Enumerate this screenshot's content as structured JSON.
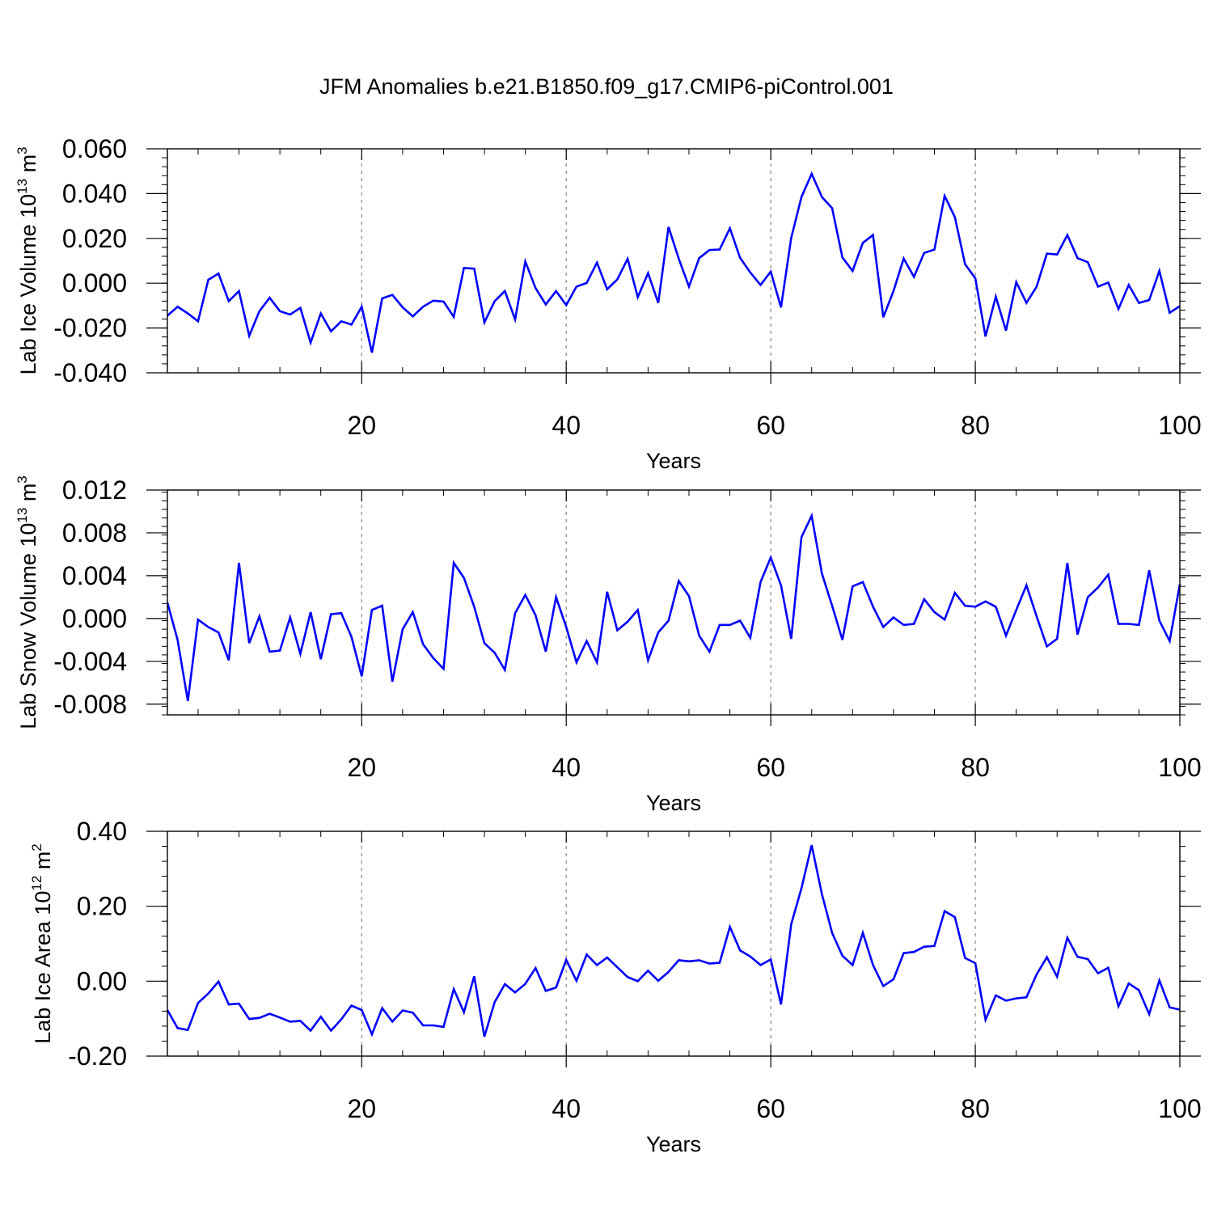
{
  "title": "JFM Anomalies b.e21.B1850.f09_g17.CMIP6-piControl.001",
  "colors": {
    "line": "#0000ff",
    "axis": "#000000",
    "grid": "#888888"
  },
  "chart_data": [
    {
      "type": "line",
      "ylabel": "Lab Ice Volume 10",
      "ylabel_exp": "13",
      "ylabel_unit": " m",
      "ylabel_unit_exp": "3",
      "xlabel": "Years",
      "xlim": [
        1,
        100
      ],
      "ylim": [
        -0.04,
        0.06
      ],
      "x_ticks": [
        20,
        40,
        60,
        80,
        100
      ],
      "x_tick_labels": [
        "20",
        "40",
        "60",
        "80",
        "100"
      ],
      "y_ticks": [
        -0.04,
        -0.02,
        0.0,
        0.02,
        0.04,
        0.06
      ],
      "y_tick_labels": [
        "-0.040",
        "-0.020",
        "0.000",
        "0.020",
        "0.040",
        "0.060"
      ],
      "series": [
        {
          "name": "Lab Ice Volume",
          "values": [
            -0.0145,
            -0.0105,
            -0.0135,
            -0.017,
            0.0015,
            0.0043,
            -0.008,
            -0.0035,
            -0.0235,
            -0.0125,
            -0.0065,
            -0.0125,
            -0.014,
            -0.011,
            -0.0265,
            -0.0135,
            -0.0215,
            -0.017,
            -0.0185,
            -0.0105,
            -0.031,
            -0.0068,
            -0.0052,
            -0.0108,
            -0.0148,
            -0.0105,
            -0.0078,
            -0.0082,
            -0.015,
            0.0068,
            0.0065,
            -0.0175,
            -0.008,
            -0.0035,
            -0.0162,
            0.0097,
            -0.0022,
            -0.0095,
            -0.0035,
            -0.0098,
            -0.0015,
            0.0001,
            0.0092,
            -0.0027,
            0.0017,
            0.0109,
            -0.0062,
            0.0045,
            -0.0088,
            0.0251,
            0.011,
            -0.0015,
            0.0112,
            0.0148,
            0.015,
            0.0245,
            0.0113,
            0.0048,
            -0.0008,
            0.0052,
            -0.0108,
            0.0202,
            0.0385,
            0.0488,
            0.0385,
            0.0335,
            0.0115,
            0.0055,
            0.018,
            0.0215,
            -0.0152,
            -0.0035,
            0.011,
            0.0028,
            0.0135,
            0.015,
            0.039,
            0.0295,
            0.0085,
            0.0022,
            -0.0238,
            -0.006,
            -0.0212,
            0.0005,
            -0.0088,
            -0.0015,
            0.0132,
            0.0128,
            0.0215,
            0.0112,
            0.0094,
            -0.0015,
            0.0003,
            -0.0115,
            -0.0008,
            -0.0088,
            -0.0075,
            0.0055,
            -0.0132,
            -0.0102
          ]
        }
      ]
    },
    {
      "type": "line",
      "ylabel": "Lab Snow Volume 10",
      "ylabel_exp": "13",
      "ylabel_unit": " m",
      "ylabel_unit_exp": "3",
      "xlabel": "Years",
      "xlim": [
        1,
        100
      ],
      "ylim": [
        -0.009,
        0.012
      ],
      "x_ticks": [
        20,
        40,
        60,
        80,
        100
      ],
      "x_tick_labels": [
        "20",
        "40",
        "60",
        "80",
        "100"
      ],
      "y_ticks": [
        -0.008,
        -0.004,
        0.0,
        0.004,
        0.008,
        0.012
      ],
      "y_tick_labels": [
        "-0.008",
        "-0.004",
        "0.000",
        "0.004",
        "0.008",
        "0.012"
      ],
      "series": [
        {
          "name": "Lab Snow Volume",
          "values": [
            0.0015,
            -0.002,
            -0.0077,
            -0.0001,
            -0.0008,
            -0.0013,
            -0.0039,
            0.0052,
            -0.0023,
            0.0002,
            -0.0031,
            -0.003,
            0.0001,
            -0.0033,
            0.0006,
            -0.0038,
            0.0004,
            0.0005,
            -0.0017,
            -0.0054,
            0.0008,
            0.0012,
            -0.0059,
            -0.001,
            0.0006,
            -0.0024,
            -0.0037,
            -0.0047,
            0.0052,
            0.0038,
            0.0011,
            -0.0023,
            -0.0032,
            -0.0048,
            0.0005,
            0.0022,
            0.0003,
            -0.0031,
            0.002,
            -0.0008,
            -0.0041,
            -0.0021,
            -0.0041,
            0.0025,
            -0.0011,
            -0.0003,
            0.0008,
            -0.0039,
            -0.0013,
            -0.0002,
            0.0035,
            0.0021,
            -0.0016,
            -0.0031,
            -0.0006,
            -0.0006,
            -0.0002,
            -0.0018,
            0.0034,
            0.0057,
            0.0031,
            -0.0019,
            0.0076,
            0.0096,
            0.0042,
            0.0012,
            -0.002,
            0.003,
            0.0034,
            0.0011,
            -0.0008,
            0.0001,
            -0.0006,
            -0.0005,
            0.0018,
            0.0006,
            -0.0001,
            0.0024,
            0.0012,
            0.0011,
            0.0016,
            0.0011,
            -0.0016,
            0.0008,
            0.0031,
            0.0002,
            -0.0026,
            -0.0019,
            0.0052,
            -0.0015,
            0.002,
            0.0029,
            0.0041,
            -0.0005,
            -0.0005,
            -0.0006,
            0.0045,
            -0.0002,
            -0.0021,
            0.0032
          ]
        }
      ]
    },
    {
      "type": "line",
      "ylabel": "Lab Ice Area 10",
      "ylabel_exp": "12",
      "ylabel_unit": " m",
      "ylabel_unit_exp": "2",
      "xlabel": "Years",
      "xlim": [
        1,
        100
      ],
      "ylim": [
        -0.2,
        0.4
      ],
      "x_ticks": [
        20,
        40,
        60,
        80,
        100
      ],
      "x_tick_labels": [
        "20",
        "40",
        "60",
        "80",
        "100"
      ],
      "y_ticks": [
        -0.2,
        0.0,
        0.2,
        0.4
      ],
      "y_tick_labels": [
        "-0.20",
        "0.00",
        "0.20",
        "0.40"
      ],
      "series": [
        {
          "name": "Lab Ice Area",
          "values": [
            -0.077,
            -0.125,
            -0.13,
            -0.058,
            -0.033,
            -0.001,
            -0.062,
            -0.06,
            -0.101,
            -0.098,
            -0.087,
            -0.097,
            -0.108,
            -0.106,
            -0.132,
            -0.095,
            -0.132,
            -0.102,
            -0.065,
            -0.077,
            -0.142,
            -0.072,
            -0.108,
            -0.078,
            -0.084,
            -0.118,
            -0.118,
            -0.122,
            -0.021,
            -0.083,
            0.013,
            -0.148,
            -0.056,
            -0.008,
            -0.03,
            -0.007,
            0.035,
            -0.026,
            -0.017,
            0.057,
            0.001,
            0.071,
            0.043,
            0.063,
            0.037,
            0.011,
            0.0,
            0.028,
            0.001,
            0.025,
            0.056,
            0.053,
            0.056,
            0.047,
            0.049,
            0.145,
            0.082,
            0.066,
            0.043,
            0.058,
            -0.062,
            0.152,
            0.248,
            0.363,
            0.232,
            0.129,
            0.068,
            0.043,
            0.129,
            0.043,
            -0.013,
            0.005,
            0.075,
            0.078,
            0.092,
            0.094,
            0.187,
            0.171,
            0.062,
            0.048,
            -0.103,
            -0.038,
            -0.052,
            -0.046,
            -0.043,
            0.018,
            0.064,
            0.012,
            0.116,
            0.065,
            0.059,
            0.021,
            0.036,
            -0.067,
            -0.006,
            -0.024,
            -0.088,
            0.002,
            -0.07,
            -0.076
          ]
        }
      ]
    }
  ]
}
